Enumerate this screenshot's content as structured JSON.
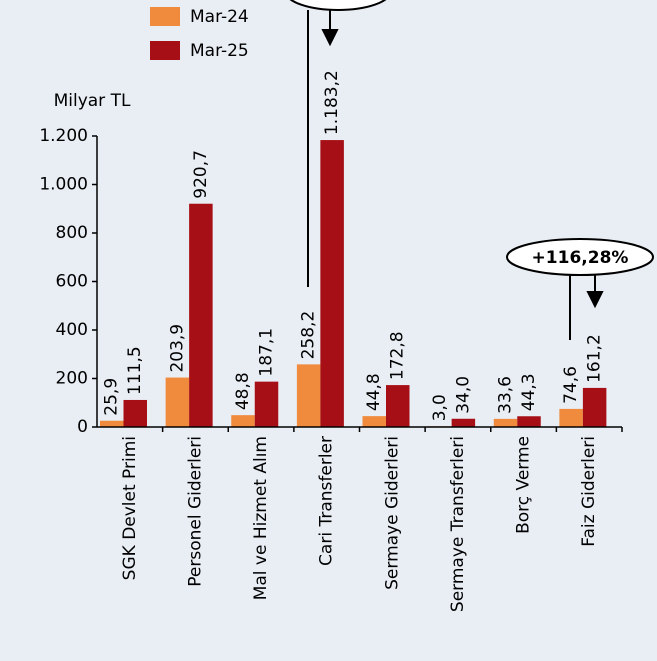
{
  "chart_data": {
    "type": "bar",
    "y_label": "Milyar TL",
    "categories": [
      "SGK Devlet Primi",
      "Personel Giderleri",
      "Mal ve Hizmet Alım",
      "Cari Transferler",
      "Sermaye Giderleri",
      "Sermaye Transferleri",
      "Borç Verme",
      "Faiz Giderleri"
    ],
    "series": [
      {
        "name": "Mar-24",
        "color": "#f08a3c",
        "values": [
          25.9,
          203.9,
          48.8,
          258.2,
          44.8,
          3.0,
          33.6,
          74.6
        ],
        "value_labels": [
          "25,9",
          "203,9",
          "48,8",
          "258,2",
          "44,8",
          "3,0",
          "33,6",
          "74,6"
        ]
      },
      {
        "name": "Mar-25",
        "color": "#a50f15",
        "values": [
          111.5,
          920.7,
          187.1,
          1183.2,
          172.8,
          34.0,
          44.3,
          161.2
        ],
        "value_labels": [
          "111,5",
          "920,7",
          "187,1",
          "1.183,2",
          "172,8",
          "34,0",
          "44,3",
          "161,2"
        ]
      }
    ],
    "ylim": [
      0,
      1200
    ],
    "yticks": [
      0,
      200,
      400,
      600,
      800,
      {
        "value": 1000,
        "label": "1.000"
      },
      {
        "value": 1200,
        "label": "1.200"
      }
    ],
    "annotation": "+116,28%"
  }
}
